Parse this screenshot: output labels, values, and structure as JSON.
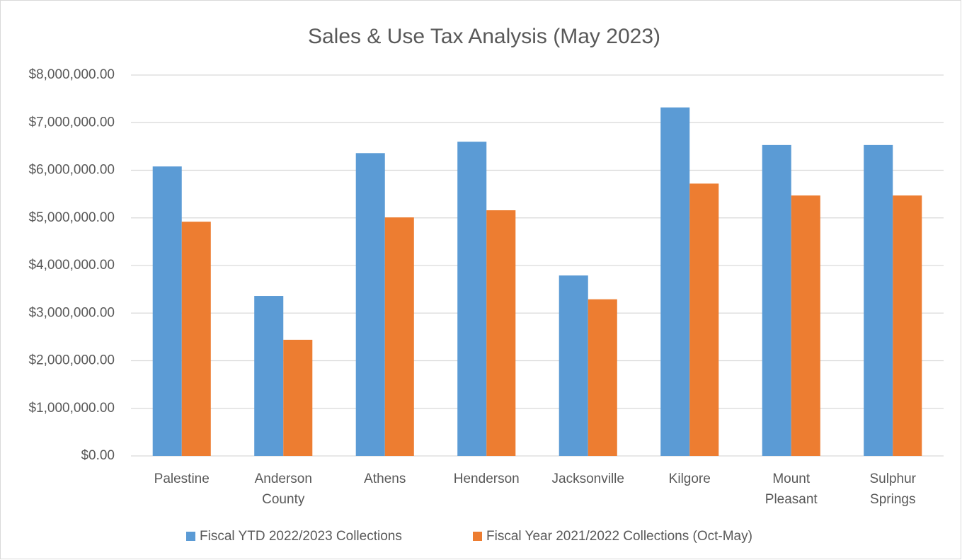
{
  "chart_data": {
    "type": "bar",
    "title": "Sales & Use Tax Analysis (May 2023)",
    "categories": [
      "Palestine",
      "Anderson County",
      "Athens",
      "Henderson",
      "Jacksonville",
      "Kilgore",
      "Mount Pleasant",
      "Sulphur Springs"
    ],
    "series": [
      {
        "name": "Fiscal YTD 2022/2023 Collections",
        "color": "#5b9bd5",
        "values": [
          6080000,
          3360000,
          6360000,
          6600000,
          3790000,
          7320000,
          6530000,
          6530000
        ]
      },
      {
        "name": "Fiscal Year 2021/2022 Collections (Oct-May)",
        "color": "#ed7d31",
        "values": [
          4920000,
          2440000,
          5010000,
          5160000,
          3290000,
          5720000,
          5470000,
          5470000
        ]
      }
    ],
    "ylim": [
      0,
      8000000
    ],
    "yticks": [
      {
        "value": 0,
        "label": "$0.00"
      },
      {
        "value": 1000000,
        "label": "$1,000,000.00"
      },
      {
        "value": 2000000,
        "label": "$2,000,000.00"
      },
      {
        "value": 3000000,
        "label": "$3,000,000.00"
      },
      {
        "value": 4000000,
        "label": "$4,000,000.00"
      },
      {
        "value": 5000000,
        "label": "$5,000,000.00"
      },
      {
        "value": 6000000,
        "label": "$6,000,000.00"
      },
      {
        "value": 7000000,
        "label": "$7,000,000.00"
      },
      {
        "value": 8000000,
        "label": "$8,000,000.00"
      }
    ],
    "grid": true,
    "legend": "bottom"
  }
}
